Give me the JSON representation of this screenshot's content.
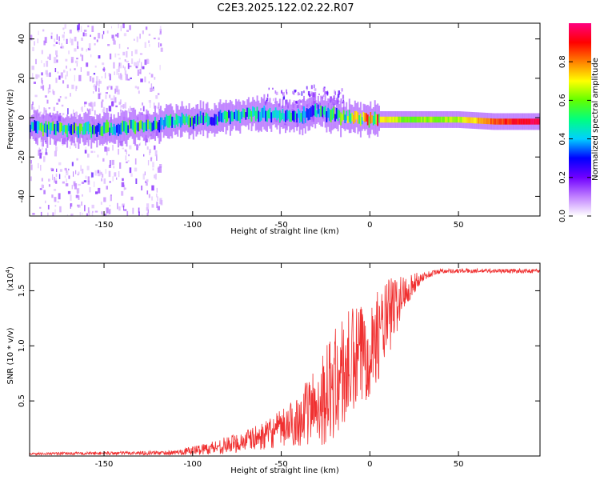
{
  "title": "C2E3.2025.122.02.22.R07",
  "chart_data": [
    {
      "type": "heatmap",
      "name": "spectrogram",
      "xlabel": "Height of straight line (km)",
      "ylabel": "Frequency (Hz)",
      "xlim": [
        -192,
        96
      ],
      "ylim": [
        -50,
        48
      ],
      "xticks": [
        -150,
        -100,
        -50,
        0,
        50
      ],
      "yticks": [
        -40,
        -20,
        0,
        20,
        40
      ],
      "colorbar": {
        "label": "Normalized spectral amplitude",
        "range": [
          0.0,
          1.0
        ],
        "ticks": [
          0.0,
          0.2,
          0.4,
          0.6,
          0.8
        ],
        "colors": [
          "#ffffff",
          "#c080ff",
          "#7000ff",
          "#0000ff",
          "#00d0ff",
          "#00ff80",
          "#60ff00",
          "#ffff00",
          "#ff8000",
          "#ff0000",
          "#ff0080"
        ]
      },
      "ridge": [
        {
          "x": -190,
          "f": -5,
          "a": 0.5
        },
        {
          "x": -170,
          "f": -6,
          "a": 0.55
        },
        {
          "x": -150,
          "f": -6,
          "a": 0.5
        },
        {
          "x": -130,
          "f": -4,
          "a": 0.5
        },
        {
          "x": -110,
          "f": -2,
          "a": 0.5
        },
        {
          "x": -90,
          "f": -1,
          "a": 0.45
        },
        {
          "x": -75,
          "f": 1,
          "a": 0.5
        },
        {
          "x": -60,
          "f": 2,
          "a": 0.45
        },
        {
          "x": -45,
          "f": 0,
          "a": 0.45
        },
        {
          "x": -30,
          "f": 3,
          "a": 0.45
        },
        {
          "x": -20,
          "f": 1,
          "a": 0.5
        },
        {
          "x": -10,
          "f": 0,
          "a": 0.6
        },
        {
          "x": 0,
          "f": -1,
          "a": 0.8
        },
        {
          "x": 20,
          "f": -1,
          "a": 0.6
        },
        {
          "x": 50,
          "f": -1,
          "a": 0.65
        },
        {
          "x": 70,
          "f": -2,
          "a": 0.85
        },
        {
          "x": 95,
          "f": -2,
          "a": 0.95
        }
      ]
    },
    {
      "type": "line",
      "name": "snr",
      "xlabel": "Height of straight line (km)",
      "ylabel": "SNR (10 * v/v)",
      "yscale_label": "(x10",
      "yscale_exp": "4",
      "xlim": [
        -192,
        96
      ],
      "ylim": [
        0,
        1.75
      ],
      "xticks": [
        -150,
        -100,
        -50,
        0,
        50
      ],
      "yticks": [
        0.5,
        1.0,
        1.5
      ],
      "color": "#f03030",
      "envelope": [
        {
          "x": -192,
          "mean": 0.02,
          "amp": 0.01
        },
        {
          "x": -110,
          "mean": 0.03,
          "amp": 0.02
        },
        {
          "x": -95,
          "mean": 0.06,
          "amp": 0.05
        },
        {
          "x": -80,
          "mean": 0.1,
          "amp": 0.08
        },
        {
          "x": -60,
          "mean": 0.18,
          "amp": 0.12
        },
        {
          "x": -45,
          "mean": 0.28,
          "amp": 0.2
        },
        {
          "x": -35,
          "mean": 0.4,
          "amp": 0.3
        },
        {
          "x": -25,
          "mean": 0.55,
          "amp": 0.45
        },
        {
          "x": -15,
          "mean": 0.75,
          "amp": 0.55
        },
        {
          "x": -5,
          "mean": 0.9,
          "amp": 0.5
        },
        {
          "x": 5,
          "mean": 1.1,
          "amp": 0.4
        },
        {
          "x": 12,
          "mean": 1.3,
          "amp": 0.35
        },
        {
          "x": 20,
          "mean": 1.5,
          "amp": 0.15
        },
        {
          "x": 30,
          "mean": 1.63,
          "amp": 0.04
        },
        {
          "x": 40,
          "mean": 1.68,
          "amp": 0.02
        },
        {
          "x": 96,
          "mean": 1.68,
          "amp": 0.02
        }
      ]
    }
  ]
}
